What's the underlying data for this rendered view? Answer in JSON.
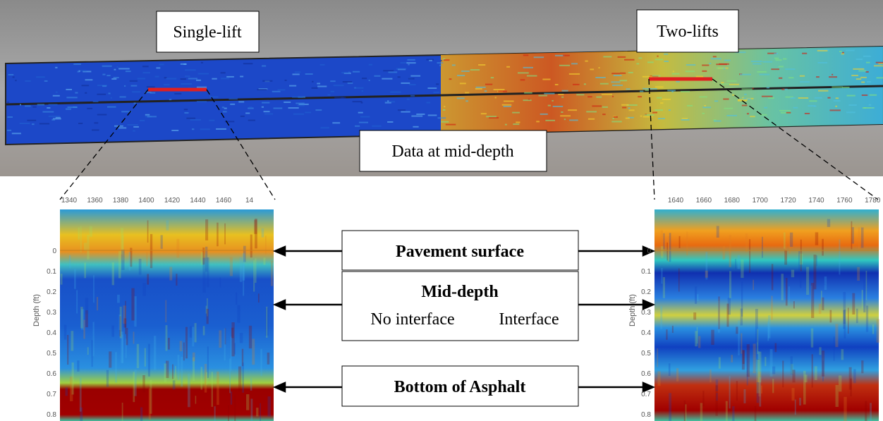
{
  "top_labels": {
    "single_lift": "Single-lift",
    "two_lifts": "Two-lifts",
    "mid_depth_data": "Data at mid-depth"
  },
  "left_panel": {
    "x_ticks": [
      "1340",
      "1360",
      "1380",
      "1400",
      "1420",
      "1440",
      "1460",
      "14"
    ],
    "y_ticks": [
      "0",
      "0.1",
      "0.2",
      "0.3",
      "0.4",
      "0.5",
      "0.6",
      "0.7",
      "0.8"
    ],
    "y_label": "Depth (ft)"
  },
  "right_panel": {
    "x_ticks": [
      "1640",
      "1660",
      "1680",
      "1700",
      "1720",
      "1740",
      "1760",
      "1780"
    ],
    "y_ticks": [
      "0",
      "0.1",
      "0.2",
      "0.3",
      "0.4",
      "0.5",
      "0.6",
      "0.7",
      "0.8"
    ],
    "y_label": "Depth (ft)"
  },
  "callouts": {
    "pavement_surface": "Pavement surface",
    "mid_depth": "Mid-depth",
    "no_interface": "No interface",
    "interface": "Interface",
    "bottom_of_asphalt": "Bottom of Asphalt"
  }
}
